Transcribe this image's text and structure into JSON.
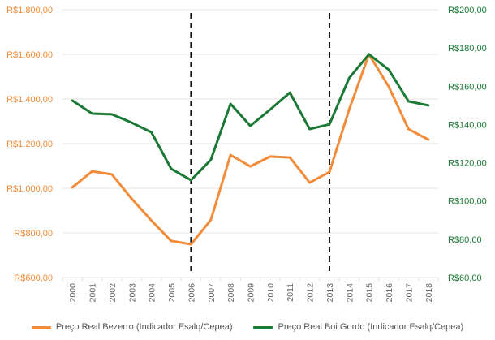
{
  "chart_data": {
    "type": "line",
    "title": "",
    "x": [
      "2000",
      "2001",
      "2002",
      "2003",
      "2004",
      "2005",
      "2006",
      "2007",
      "2008",
      "2009",
      "2010",
      "2011",
      "2012",
      "2013",
      "2014",
      "2015",
      "2016",
      "2017",
      "2018"
    ],
    "series": [
      {
        "name": "Preço Real Bezerro (Indicador Esalq/Cepea)",
        "axis": "left",
        "color": "#f28c3a",
        "values": [
          1004,
          1076,
          1062,
          953,
          855,
          764,
          749,
          858,
          1149,
          1098,
          1142,
          1138,
          1025,
          1073,
          1353,
          1600,
          1455,
          1265,
          1218
        ]
      },
      {
        "name": "Preço Real Boi Gordo (Indicador Esalq/Cepea)",
        "axis": "right",
        "color": "#1a7a35",
        "values": [
          152.5,
          145.7,
          145.3,
          141.0,
          135.9,
          116.8,
          110.9,
          121.5,
          150.8,
          139.3,
          147.8,
          156.7,
          137.6,
          140.1,
          164.3,
          176.7,
          168.6,
          152.1,
          150.0
        ]
      }
    ],
    "y_left": {
      "ylim": [
        600,
        1800
      ],
      "ticks": [
        600,
        800,
        1000,
        1200,
        1400,
        1600,
        1800
      ],
      "tick_labels": [
        "R$600,00",
        "R$800,00",
        "R$1.000,00",
        "R$1.200,00",
        "R$1.400,00",
        "R$1.600,00",
        "R$1.800,00"
      ],
      "color": "#f28c3a"
    },
    "y_right": {
      "ylim": [
        60,
        200
      ],
      "ticks": [
        60,
        80,
        100,
        120,
        140,
        160,
        180,
        200
      ],
      "tick_labels": [
        "R$60,00",
        "R$80,00",
        "R$100,00",
        "R$120,00",
        "R$140,00",
        "R$160,00",
        "R$180,00",
        "R$200,00"
      ],
      "color": "#1a7a35"
    },
    "vertical_markers": [
      "2006",
      "2013"
    ],
    "grid": true,
    "legend_position": "bottom",
    "xlabel": "",
    "ylabel": ""
  }
}
